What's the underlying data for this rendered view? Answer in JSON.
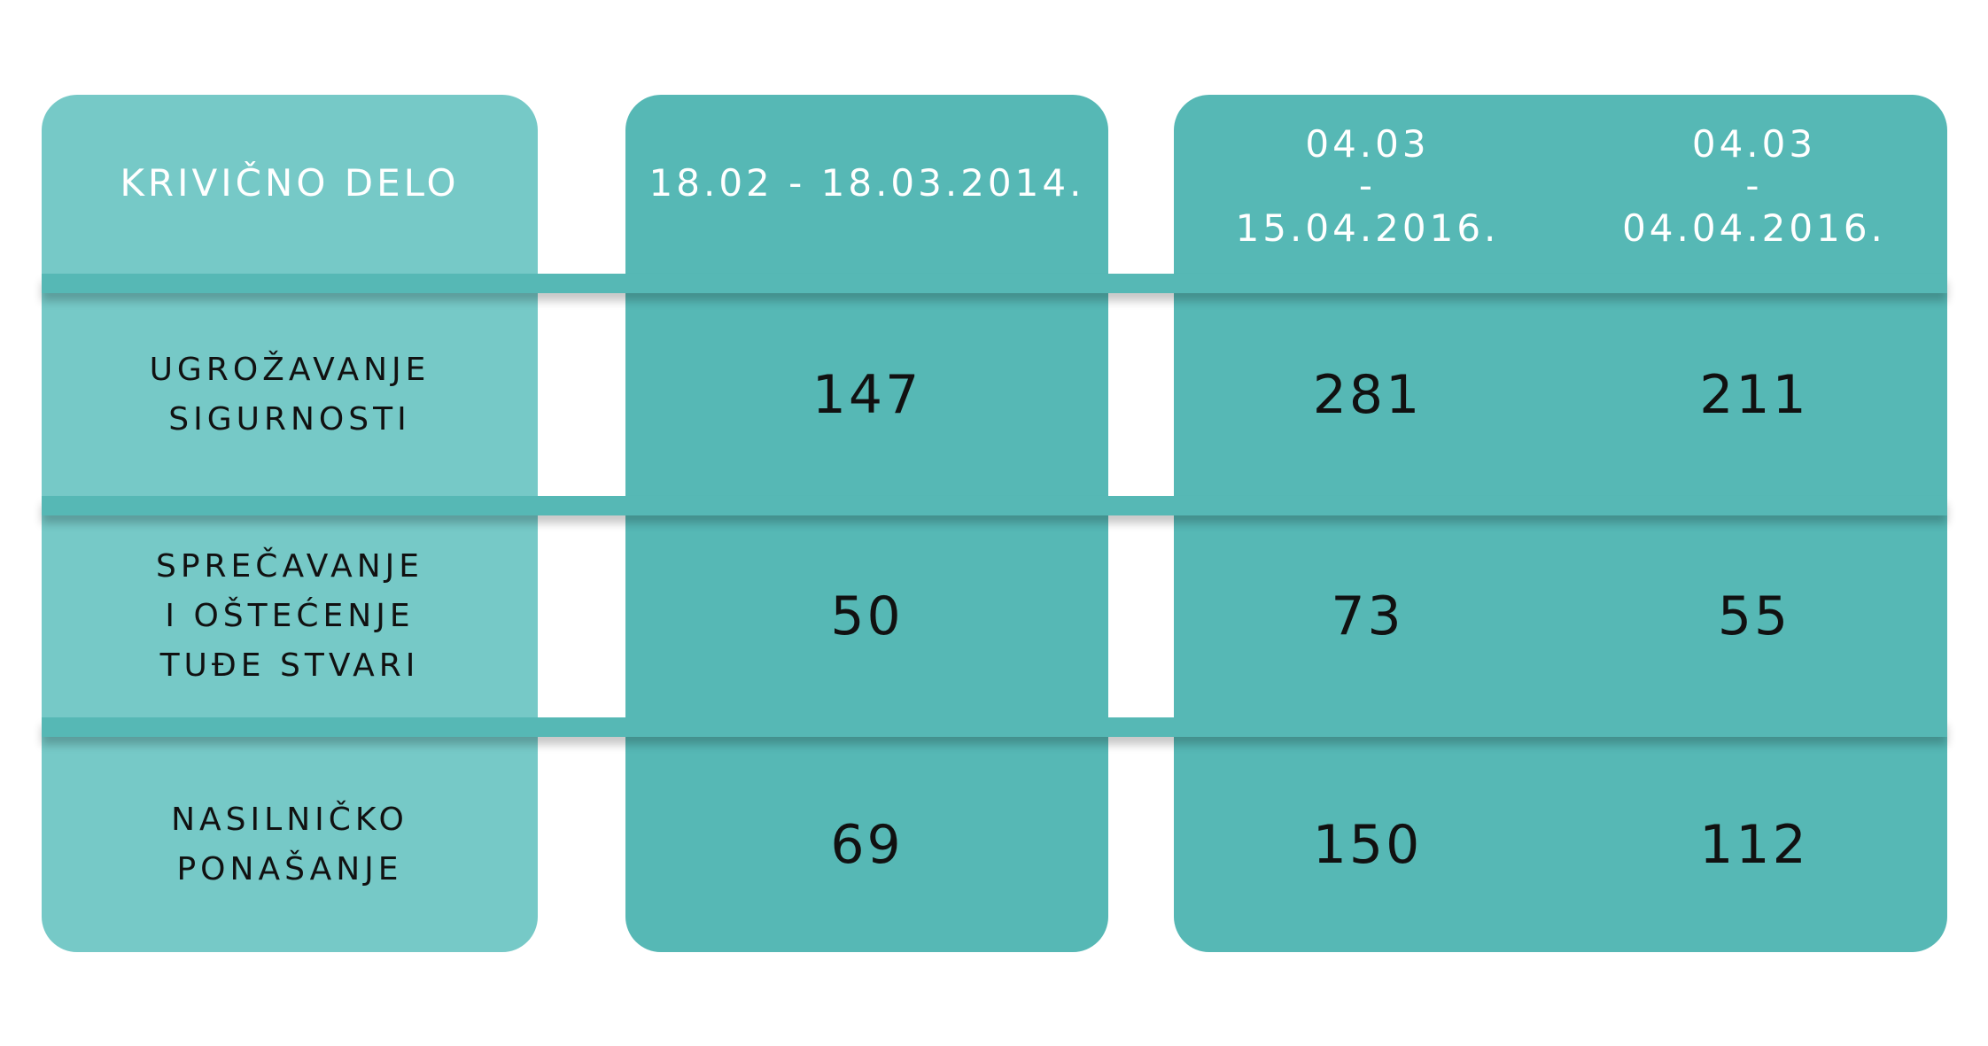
{
  "chart_data": {
    "type": "table",
    "columns": [
      "KRIVIČNO DELO",
      "18.02 - 18.03.2014.",
      "04.03\n-\n15.04.2016.",
      "04.03\n-\n04.04.2016."
    ],
    "rows": [
      {
        "label": "UGROŽAVANJE\nSIGURNOSTI",
        "values": [
          "147",
          "281",
          "211"
        ]
      },
      {
        "label": "SPREČAVANJE\nI OŠTEĆENJE\nTUĐE STVARI",
        "values": [
          "50",
          "73",
          "55"
        ]
      },
      {
        "label": "NASILNIČKO\nPONAŠANJE",
        "values": [
          "69",
          "150",
          "112"
        ]
      }
    ]
  },
  "colors": {
    "label_panel": "#76c9c7",
    "data_panel": "#56b8b5",
    "header_text": "#ffffff",
    "body_text": "#111111"
  }
}
